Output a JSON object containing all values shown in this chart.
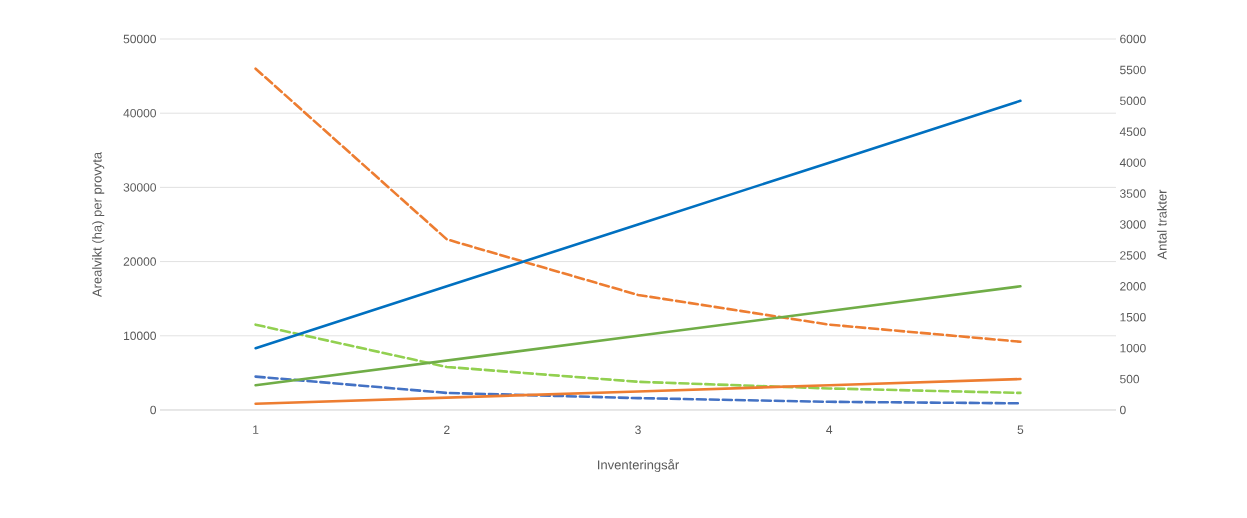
{
  "chart_data": {
    "type": "line",
    "xlabel": "Inventeringsår",
    "ylabel": "Arealvikt (ha) per provyta",
    "y2label": "Antal trakter",
    "categories": [
      "1",
      "2",
      "3",
      "4",
      "5"
    ],
    "series": [
      {
        "color": "#0070c0",
        "values": [
          1000,
          2000,
          3000,
          4000,
          5000
        ],
        "axis": "y2",
        "line_style": "solid"
      },
      {
        "color": "#70ad47",
        "values": [
          400,
          800,
          1200,
          1600,
          2000
        ],
        "axis": "y2",
        "line_style": "solid"
      },
      {
        "color": "#ed7d31",
        "values": [
          100,
          200,
          300,
          400,
          500
        ],
        "axis": "y2",
        "line_style": "solid"
      },
      {
        "color": "#ed7d31",
        "values": [
          46000,
          23000,
          15500,
          11500,
          9200
        ],
        "line_style": "dashed"
      },
      {
        "color": "#92d050",
        "values": [
          11500,
          5800,
          3800,
          2900,
          2300
        ],
        "line_style": "dashed"
      },
      {
        "color": "#4472c4",
        "values": [
          4500,
          2300,
          1600,
          1100,
          900
        ],
        "line_style": "dashed"
      }
    ],
    "ylim": [
      0,
      50000
    ],
    "yticks": [
      0,
      10000,
      20000,
      30000,
      40000,
      50000
    ],
    "y2lim": [
      0,
      6000
    ],
    "y2ticks": [
      0,
      500,
      1000,
      1500,
      2000,
      2500,
      3000,
      3500,
      4000,
      4500,
      5000,
      5500,
      6000
    ],
    "grid": "y"
  }
}
